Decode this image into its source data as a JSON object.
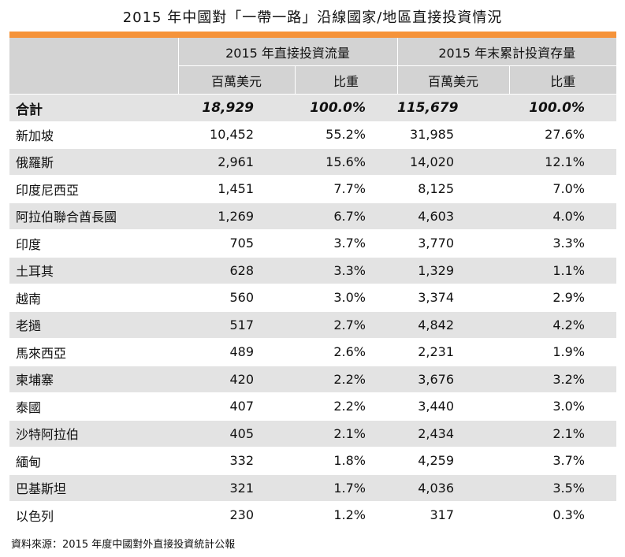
{
  "title": "2015 年中國對「一帶一路」沿線國家/地區直接投資情況",
  "header": {
    "group1": "2015 年直接投資流量",
    "group2": "2015 年末累計投資存量",
    "sub": [
      "百萬美元",
      "比重",
      "百萬美元",
      "比重"
    ]
  },
  "total": {
    "label": "合計",
    "values": [
      "18,929",
      "100.0%",
      "115,679",
      "100.0%"
    ]
  },
  "rows": [
    {
      "name": "新加坡",
      "values": [
        "10,452",
        "55.2%",
        "31,985",
        "27.6%"
      ]
    },
    {
      "name": "俄羅斯",
      "values": [
        "2,961",
        "15.6%",
        "14,020",
        "12.1%"
      ]
    },
    {
      "name": "印度尼西亞",
      "values": [
        "1,451",
        "7.7%",
        "8,125",
        "7.0%"
      ]
    },
    {
      "name": "阿拉伯聯合酋長國",
      "values": [
        "1,269",
        "6.7%",
        "4,603",
        "4.0%"
      ]
    },
    {
      "name": "印度",
      "values": [
        "705",
        "3.7%",
        "3,770",
        "3.3%"
      ]
    },
    {
      "name": "土耳其",
      "values": [
        "628",
        "3.3%",
        "1,329",
        "1.1%"
      ]
    },
    {
      "name": "越南",
      "values": [
        "560",
        "3.0%",
        "3,374",
        "2.9%"
      ]
    },
    {
      "name": "老撾",
      "values": [
        "517",
        "2.7%",
        "4,842",
        "4.2%"
      ]
    },
    {
      "name": "馬來西亞",
      "values": [
        "489",
        "2.6%",
        "2,231",
        "1.9%"
      ]
    },
    {
      "name": "柬埔寨",
      "values": [
        "420",
        "2.2%",
        "3,676",
        "3.2%"
      ]
    },
    {
      "name": "泰國",
      "values": [
        "407",
        "2.2%",
        "3,440",
        "3.0%"
      ]
    },
    {
      "name": "沙特阿拉伯",
      "values": [
        "405",
        "2.1%",
        "2,434",
        "2.1%"
      ]
    },
    {
      "name": "緬甸",
      "values": [
        "332",
        "1.8%",
        "4,259",
        "3.7%"
      ]
    },
    {
      "name": "巴基斯坦",
      "values": [
        "321",
        "1.7%",
        "4,036",
        "3.5%"
      ]
    },
    {
      "name": "以色列",
      "values": [
        "230",
        "1.2%",
        "317",
        "0.3%"
      ]
    }
  ],
  "source": "資料來源：2015 年度中國對外直接投資統計公報",
  "colors": {
    "accent": "#f5933a",
    "header_bg": "#d3d3d3",
    "shade_bg": "#e3e3e3"
  }
}
